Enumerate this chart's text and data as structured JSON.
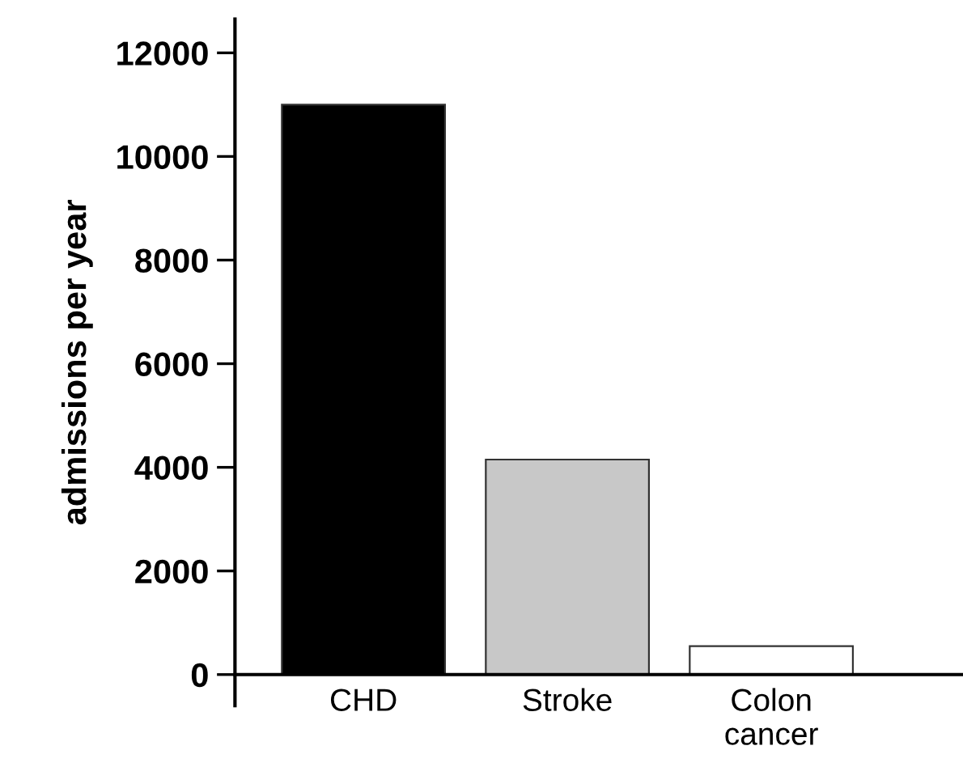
{
  "chart_data": {
    "type": "bar",
    "ylabel": "admissions per year",
    "categories": [
      "CHD",
      "Stroke",
      "Colon\ncancer"
    ],
    "values": [
      11000,
      4150,
      550
    ],
    "colors": [
      "#000000",
      "#c8c8c8",
      "#ffffff"
    ],
    "ylim": [
      -600,
      12650
    ],
    "yticks": [
      0,
      2000,
      4000,
      6000,
      8000,
      10000,
      12000
    ],
    "grid": false
  }
}
